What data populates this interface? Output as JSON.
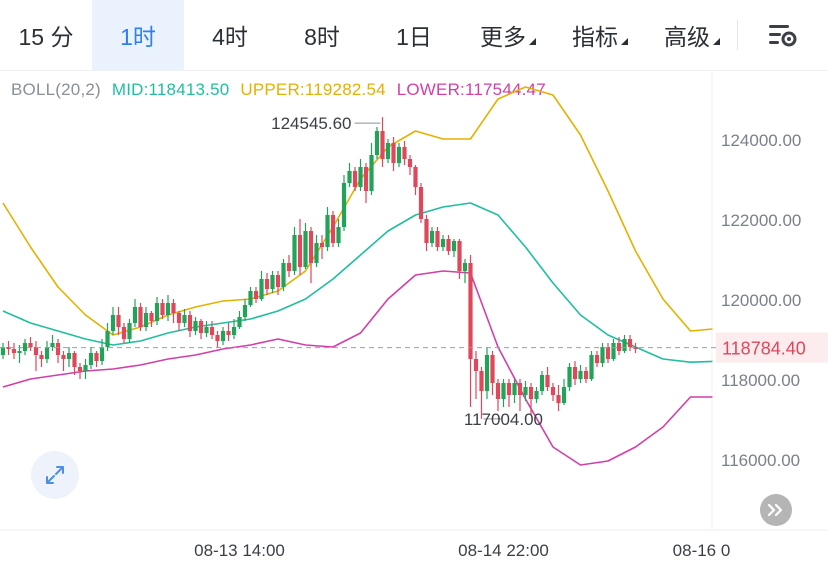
{
  "tabs": [
    {
      "label": "15 分",
      "active": false
    },
    {
      "label": "1时",
      "active": true
    },
    {
      "label": "4时",
      "active": false
    },
    {
      "label": "8时",
      "active": false
    },
    {
      "label": "1日",
      "active": false
    },
    {
      "label": "更多",
      "active": false,
      "dropdown": true
    },
    {
      "label": "指标",
      "active": false,
      "dropdown": true
    },
    {
      "label": "高级",
      "active": false,
      "dropdown": true
    }
  ],
  "settings_icon": "chart-settings-icon",
  "indicator": {
    "name": "BOLL(20,2)",
    "mid": "MID:118413.50",
    "upper": "UPPER:119282.54",
    "lower": "LOWER:117544.47",
    "colors": {
      "name": "#8a8f99",
      "mid": "#1fbf9e",
      "upper": "#e5b100",
      "lower": "#d23fa8"
    }
  },
  "chart_data": {
    "type": "candlestick",
    "y_ticks": [
      "124000.00",
      "122000.00",
      "120000.00",
      "118000.00",
      "116000.00"
    ],
    "y_tick_values": [
      124000,
      122000,
      120000,
      118000,
      116000
    ],
    "x_ticks": [
      "08-13 14:00",
      "08-14 22:00",
      "08-16 0"
    ],
    "x_tick_index": [
      43,
      91,
      127
    ],
    "ylim": [
      115500,
      125600
    ],
    "current_price": "118784.40",
    "current_price_value": 118784.4,
    "high_label": "124545.60",
    "high_value": 124545.6,
    "high_index": 69,
    "low_label": "117004.00",
    "low_value": 117004.0,
    "low_index": 87,
    "colors": {
      "up": "#22a35a",
      "down": "#e0475a",
      "mid": "#1fbf9e",
      "upper": "#e5b100",
      "lower": "#d23fa8"
    },
    "candles": [
      [
        118600,
        118800,
        118500,
        118900
      ],
      [
        118800,
        118750,
        118600,
        118950
      ],
      [
        118750,
        118650,
        118500,
        118900
      ],
      [
        118650,
        118700,
        118400,
        118850
      ],
      [
        118700,
        118900,
        118600,
        119000
      ],
      [
        118900,
        118800,
        118700,
        119050
      ],
      [
        118800,
        118600,
        118200,
        118950
      ],
      [
        118600,
        118500,
        118300,
        118700
      ],
      [
        118500,
        118800,
        118400,
        118950
      ],
      [
        118800,
        118900,
        118700,
        119100
      ],
      [
        118900,
        118600,
        118400,
        119000
      ],
      [
        118600,
        118500,
        118200,
        118700
      ],
      [
        118500,
        118650,
        118300,
        118800
      ],
      [
        118650,
        118300,
        118100,
        118700
      ],
      [
        118300,
        118200,
        118000,
        118400
      ],
      [
        118200,
        118350,
        118000,
        118500
      ],
      [
        118350,
        118650,
        118250,
        118800
      ],
      [
        118650,
        118450,
        118300,
        118700
      ],
      [
        118450,
        118800,
        118350,
        119000
      ],
      [
        118800,
        119200,
        118700,
        119400
      ],
      [
        119200,
        119600,
        119100,
        119800
      ],
      [
        119600,
        119300,
        119100,
        119800
      ],
      [
        119300,
        119000,
        118900,
        119400
      ],
      [
        119000,
        119400,
        118900,
        119500
      ],
      [
        119400,
        119800,
        119300,
        120000
      ],
      [
        119800,
        119300,
        119200,
        119900
      ],
      [
        119300,
        119650,
        119200,
        119800
      ],
      [
        119650,
        119450,
        119300,
        119700
      ],
      [
        119450,
        119900,
        119350,
        120050
      ],
      [
        119900,
        119600,
        119500,
        120000
      ],
      [
        119600,
        119900,
        119450,
        120100
      ],
      [
        119900,
        119650,
        119400,
        120000
      ],
      [
        119650,
        119400,
        119200,
        119700
      ],
      [
        119400,
        119600,
        119300,
        119750
      ],
      [
        119600,
        119200,
        119050,
        119700
      ],
      [
        119200,
        119450,
        119100,
        119550
      ],
      [
        119450,
        119150,
        119000,
        119500
      ],
      [
        119150,
        119300,
        119050,
        119450
      ],
      [
        119300,
        119100,
        119000,
        119450
      ],
      [
        119100,
        118950,
        118800,
        119200
      ],
      [
        118950,
        119200,
        118850,
        119300
      ],
      [
        119200,
        119100,
        118950,
        119400
      ],
      [
        119100,
        119300,
        119000,
        119500
      ],
      [
        119300,
        119550,
        119250,
        119700
      ],
      [
        119550,
        119850,
        119450,
        120000
      ],
      [
        119850,
        120200,
        119800,
        120300
      ],
      [
        120200,
        120000,
        119900,
        120300
      ],
      [
        120000,
        120500,
        119950,
        120700
      ],
      [
        120500,
        120250,
        120100,
        120650
      ],
      [
        120250,
        120600,
        120150,
        120700
      ],
      [
        120600,
        120300,
        120100,
        120700
      ],
      [
        120300,
        120900,
        120200,
        121000
      ],
      [
        120900,
        120700,
        120550,
        121100
      ],
      [
        120700,
        121600,
        120600,
        121800
      ],
      [
        121600,
        120800,
        120600,
        122000
      ],
      [
        120800,
        121700,
        120750,
        121900
      ],
      [
        121700,
        120900,
        120400,
        121800
      ],
      [
        120900,
        121400,
        120800,
        121600
      ],
      [
        121400,
        121300,
        121000,
        121600
      ],
      [
        121300,
        122100,
        121200,
        122300
      ],
      [
        122100,
        121400,
        121300,
        122200
      ],
      [
        121400,
        121800,
        121300,
        122000
      ],
      [
        121800,
        122900,
        121700,
        123100
      ],
      [
        122900,
        123200,
        122800,
        123400
      ],
      [
        123200,
        122800,
        122700,
        123300
      ],
      [
        122800,
        123300,
        122700,
        123500
      ],
      [
        123300,
        122700,
        122400,
        123400
      ],
      [
        122700,
        123600,
        122600,
        123900
      ],
      [
        123600,
        124200,
        123500,
        124300
      ],
      [
        124200,
        123500,
        123300,
        124546
      ],
      [
        123500,
        123900,
        123400,
        124000
      ],
      [
        123900,
        123400,
        123200,
        124050
      ],
      [
        123400,
        123800,
        123300,
        123900
      ],
      [
        123800,
        123500,
        123350,
        123950
      ],
      [
        123500,
        123300,
        123100,
        123600
      ],
      [
        123300,
        122800,
        122600,
        123350
      ],
      [
        122800,
        122000,
        121900,
        122900
      ],
      [
        122000,
        121400,
        121200,
        122100
      ],
      [
        121400,
        121700,
        121300,
        121800
      ],
      [
        121700,
        121300,
        121200,
        121800
      ],
      [
        121300,
        121500,
        121200,
        121600
      ],
      [
        121500,
        121200,
        121100,
        121600
      ],
      [
        121200,
        121450,
        121050,
        121500
      ],
      [
        121450,
        120700,
        120500,
        121500
      ],
      [
        120700,
        120900,
        120400,
        121000
      ],
      [
        120900,
        118500,
        117300,
        121100
      ],
      [
        118500,
        118200,
        117500,
        118700
      ],
      [
        118200,
        117700,
        117004,
        118300
      ],
      [
        117700,
        118600,
        117500,
        118800
      ],
      [
        118600,
        117900,
        117600,
        118700
      ],
      [
        117900,
        117500,
        117200,
        118000
      ],
      [
        117500,
        117900,
        117300,
        118000
      ],
      [
        117900,
        117600,
        117300,
        118000
      ],
      [
        117600,
        117900,
        117400,
        118000
      ],
      [
        117900,
        117600,
        117200,
        118000
      ],
      [
        117600,
        117800,
        117450,
        117950
      ],
      [
        117800,
        117500,
        117100,
        117900
      ],
      [
        117500,
        117700,
        117400,
        117800
      ],
      [
        117700,
        118100,
        117600,
        118200
      ],
      [
        118100,
        117800,
        117700,
        118300
      ],
      [
        117800,
        117600,
        117450,
        117900
      ],
      [
        117600,
        117400,
        117200,
        117850
      ],
      [
        117400,
        117800,
        117350,
        118000
      ],
      [
        117800,
        118300,
        117700,
        118400
      ],
      [
        118300,
        118000,
        117850,
        118450
      ],
      [
        118000,
        118200,
        117900,
        118350
      ],
      [
        118200,
        118000,
        117900,
        118300
      ],
      [
        118000,
        118600,
        117950,
        118700
      ],
      [
        118600,
        118400,
        118300,
        118700
      ],
      [
        118400,
        118800,
        118300,
        118900
      ],
      [
        118800,
        118500,
        118400,
        118900
      ],
      [
        118500,
        118900,
        118450,
        119000
      ],
      [
        118900,
        118700,
        118600,
        119050
      ],
      [
        118700,
        119000,
        118650,
        119100
      ],
      [
        119000,
        118800,
        118700,
        119100
      ],
      [
        118800,
        118750,
        118650,
        118900
      ]
    ],
    "upper_band": [
      [
        0,
        122400
      ],
      [
        5,
        121300
      ],
      [
        10,
        120300
      ],
      [
        15,
        119600
      ],
      [
        20,
        119100
      ],
      [
        25,
        119300
      ],
      [
        30,
        119600
      ],
      [
        35,
        119800
      ],
      [
        40,
        119950
      ],
      [
        45,
        120000
      ],
      [
        50,
        120200
      ],
      [
        55,
        120700
      ],
      [
        60,
        121800
      ],
      [
        65,
        123000
      ],
      [
        70,
        123800
      ],
      [
        75,
        124200
      ],
      [
        80,
        124000
      ],
      [
        85,
        124000
      ],
      [
        90,
        125000
      ],
      [
        95,
        125300
      ],
      [
        100,
        125100
      ],
      [
        105,
        124100
      ],
      [
        110,
        122700
      ],
      [
        115,
        121200
      ],
      [
        120,
        120000
      ],
      [
        125,
        119200
      ],
      [
        129,
        119250
      ]
    ],
    "mid_band": [
      [
        0,
        119700
      ],
      [
        5,
        119400
      ],
      [
        10,
        119200
      ],
      [
        15,
        119000
      ],
      [
        20,
        118850
      ],
      [
        25,
        118950
      ],
      [
        30,
        119150
      ],
      [
        35,
        119300
      ],
      [
        40,
        119400
      ],
      [
        45,
        119500
      ],
      [
        50,
        119700
      ],
      [
        55,
        120000
      ],
      [
        60,
        120500
      ],
      [
        65,
        121100
      ],
      [
        70,
        121700
      ],
      [
        75,
        122100
      ],
      [
        80,
        122300
      ],
      [
        85,
        122400
      ],
      [
        90,
        122100
      ],
      [
        95,
        121300
      ],
      [
        100,
        120400
      ],
      [
        105,
        119600
      ],
      [
        110,
        119100
      ],
      [
        115,
        118800
      ],
      [
        120,
        118500
      ],
      [
        125,
        118420
      ],
      [
        129,
        118440
      ]
    ],
    "lower_band": [
      [
        0,
        117800
      ],
      [
        5,
        118000
      ],
      [
        10,
        118100
      ],
      [
        15,
        118200
      ],
      [
        20,
        118250
      ],
      [
        25,
        118350
      ],
      [
        30,
        118500
      ],
      [
        35,
        118600
      ],
      [
        40,
        118750
      ],
      [
        45,
        118850
      ],
      [
        50,
        119000
      ],
      [
        55,
        118850
      ],
      [
        60,
        118800
      ],
      [
        65,
        119150
      ],
      [
        70,
        120000
      ],
      [
        75,
        120600
      ],
      [
        80,
        120700
      ],
      [
        85,
        120650
      ],
      [
        90,
        118800
      ],
      [
        95,
        117500
      ],
      [
        100,
        116300
      ],
      [
        105,
        115850
      ],
      [
        110,
        115950
      ],
      [
        115,
        116300
      ],
      [
        120,
        116800
      ],
      [
        125,
        117550
      ],
      [
        129,
        117550
      ]
    ]
  }
}
